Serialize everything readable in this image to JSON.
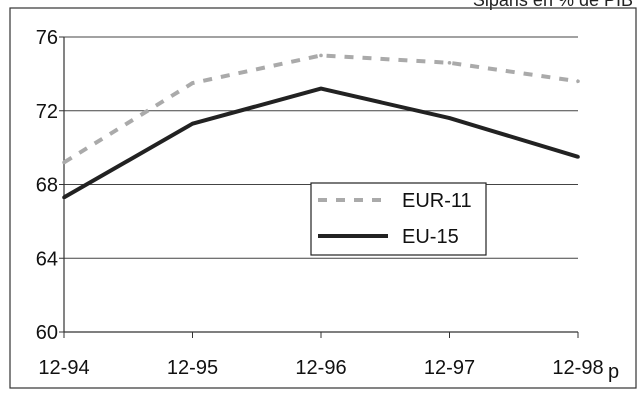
{
  "header": {
    "caption": "Siparis en % de PIB"
  },
  "chart_data": {
    "type": "line",
    "x": [
      "12-94",
      "12-95",
      "12-96",
      "12-97",
      "12-98"
    ],
    "x_suffix": "p",
    "ylim": [
      60,
      76
    ],
    "yticks": [
      60,
      64,
      68,
      72,
      76
    ],
    "grid": true,
    "legend": "center-right",
    "series": [
      {
        "name": "EUR-11",
        "style": "dashed",
        "color": "#aaaaaa",
        "values": [
          69.2,
          73.5,
          75.0,
          74.6,
          73.6
        ]
      },
      {
        "name": "EU-15",
        "style": "solid",
        "color": "#222222",
        "values": [
          67.3,
          71.3,
          73.2,
          71.6,
          69.5
        ]
      }
    ]
  }
}
